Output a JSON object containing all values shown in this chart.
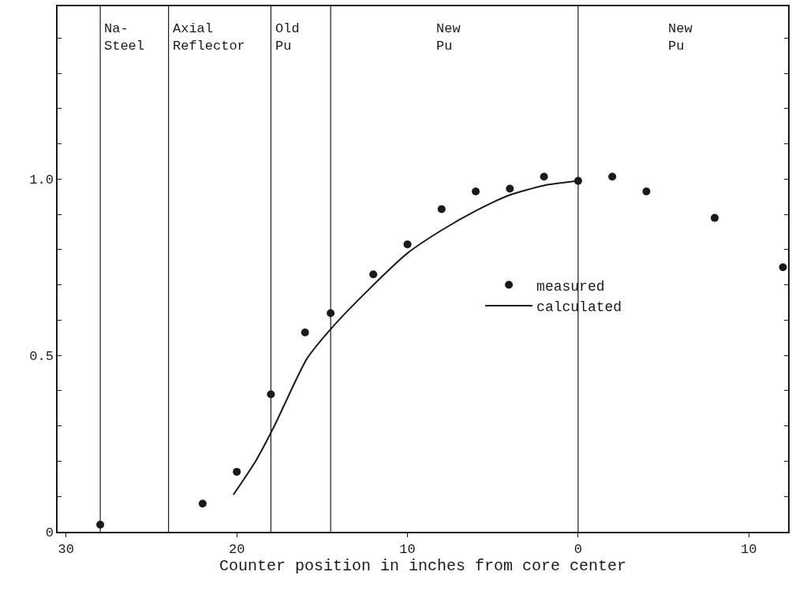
{
  "chart_data": {
    "type": "scatter",
    "xlabel": "Counter position in inches from core center",
    "xlim": [
      -30.5,
      12.3
    ],
    "xticks": [
      {
        "value": -30,
        "label": "30"
      },
      {
        "value": -20,
        "label": "20"
      },
      {
        "value": -10,
        "label": "10"
      },
      {
        "value": 0,
        "label": "0"
      },
      {
        "value": 10,
        "label": "10"
      }
    ],
    "ylim": [
      0,
      1.49
    ],
    "yticks": [
      {
        "value": 0,
        "label": "0"
      },
      {
        "value": 0.1,
        "label": null
      },
      {
        "value": 0.2,
        "label": null
      },
      {
        "value": 0.3,
        "label": null
      },
      {
        "value": 0.4,
        "label": null
      },
      {
        "value": 0.5,
        "label": "0.5"
      },
      {
        "value": 0.6,
        "label": null
      },
      {
        "value": 0.7,
        "label": null
      },
      {
        "value": 0.8,
        "label": null
      },
      {
        "value": 0.9,
        "label": null
      },
      {
        "value": 1.0,
        "label": "1.0"
      },
      {
        "value": 1.1,
        "label": null
      },
      {
        "value": 1.2,
        "label": null
      },
      {
        "value": 1.3,
        "label": null
      },
      {
        "value": 1.4,
        "label": null
      }
    ],
    "legend": "center",
    "series": [
      {
        "name": "measured",
        "marker": "circle",
        "color": "#1a1a1a",
        "x": [
          -28,
          -22,
          -20,
          -18,
          -16,
          -14.5,
          -12,
          -10,
          -8,
          -6,
          -4,
          -2,
          0,
          2,
          4,
          8,
          12
        ],
        "values": [
          0.02,
          0.08,
          0.17,
          0.39,
          0.565,
          0.62,
          0.73,
          0.815,
          0.915,
          0.965,
          0.973,
          1.007,
          0.995,
          1.007,
          0.965,
          0.89,
          0.75
        ]
      },
      {
        "name": "calculated",
        "type": "line",
        "line_style": "solid",
        "color": "#1a1a1a",
        "x": [
          -20.2,
          -18.9,
          -17.8,
          -15.9,
          -14.4,
          -12.2,
          -10,
          -8,
          -6,
          -4,
          -2,
          0
        ],
        "values": [
          0.105,
          0.2,
          0.3,
          0.49,
          0.58,
          0.69,
          0.79,
          0.855,
          0.91,
          0.955,
          0.982,
          0.995
        ]
      }
    ],
    "ref_lines": [
      {
        "axis": "x",
        "value": -28,
        "color": "#1a1a1a"
      },
      {
        "axis": "x",
        "value": -24,
        "color": "#1a1a1a"
      },
      {
        "axis": "x",
        "value": -18,
        "color": "#1a1a1a"
      },
      {
        "axis": "x",
        "value": -14.5,
        "color": "#1a1a1a"
      },
      {
        "axis": "x",
        "value": 0,
        "color": "#1a1a1a"
      }
    ],
    "annotations": [
      "Na-\nSteel",
      "Axial\nReflector",
      "Old\nPu",
      "New\nPu",
      "New\nPu"
    ]
  }
}
